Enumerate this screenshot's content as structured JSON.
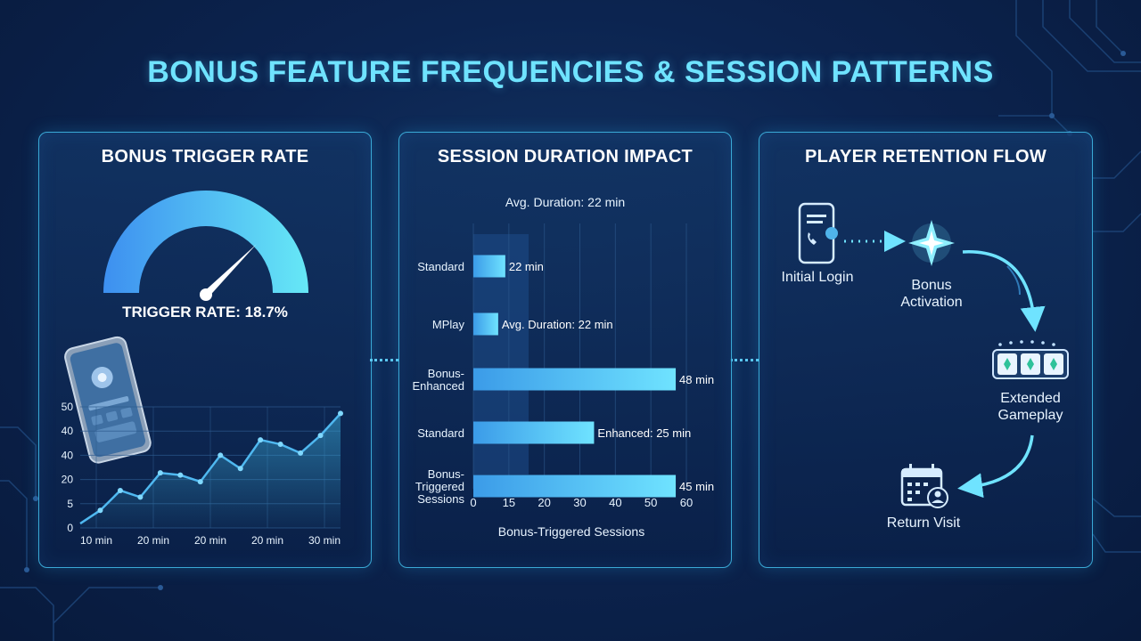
{
  "title": "BONUS FEATURE FREQUENCIES & SESSION PATTERNS",
  "colors": {
    "accent": "#6fe3ff",
    "bar": "#5ad4f5",
    "border": "#3aa9d6",
    "background": "#0c2450"
  },
  "panels": {
    "trigger": {
      "title": "BONUS TRIGGER RATE",
      "rate_text": "TRIGGER RATE: 18.7%",
      "gauge_value": 0.75
    },
    "session": {
      "title": "SESSION DURATION IMPACT",
      "avg_label": "Avg. Duration: 22 min",
      "xlabel": "Bonus-Triggered Sessions"
    },
    "retention": {
      "title": "PLAYER RETENTION FLOW",
      "steps": [
        {
          "label": "Initial Login",
          "icon": "phone-login-icon"
        },
        {
          "label": "Bonus\nActivation",
          "icon": "sparkle-star-icon"
        },
        {
          "label": "Extended\nGameplay",
          "icon": "slot-reels-icon"
        },
        {
          "label": "Return Visit",
          "icon": "calendar-user-icon"
        }
      ]
    }
  },
  "chart_data": [
    {
      "type": "line",
      "title": "",
      "xlabel": "",
      "ylabel": "",
      "y_ticks": [
        "50",
        "40",
        "40",
        "20",
        "5",
        "0"
      ],
      "x_ticks": [
        "10 min",
        "20 min",
        "20 min",
        "20 min",
        "30 min"
      ],
      "series": [
        {
          "values": [
            2,
            8,
            17,
            14,
            25,
            24,
            21,
            33,
            27,
            40,
            38,
            34,
            42,
            52
          ]
        }
      ],
      "ylim": [
        0,
        55
      ],
      "grid": true
    },
    {
      "type": "bar",
      "orientation": "horizontal",
      "title": "Avg. Duration: 22 min",
      "xlabel": "Bonus-Triggered Sessions",
      "x_ticks": [
        "0",
        "15",
        "20",
        "30",
        "40",
        "50",
        "60"
      ],
      "categories": [
        "Standard",
        "MPlay",
        "Bonus-\nEnhanced",
        "Standard",
        "Bonus-\nTriggered\nSessions"
      ],
      "values": [
        9,
        7,
        57,
        34,
        57
      ],
      "data_labels": [
        "22 min",
        "Avg. Duration: 22 min",
        "48 min",
        "Enhanced: 25 min",
        "45 min"
      ],
      "xlim": [
        0,
        60
      ],
      "grid": true
    }
  ]
}
